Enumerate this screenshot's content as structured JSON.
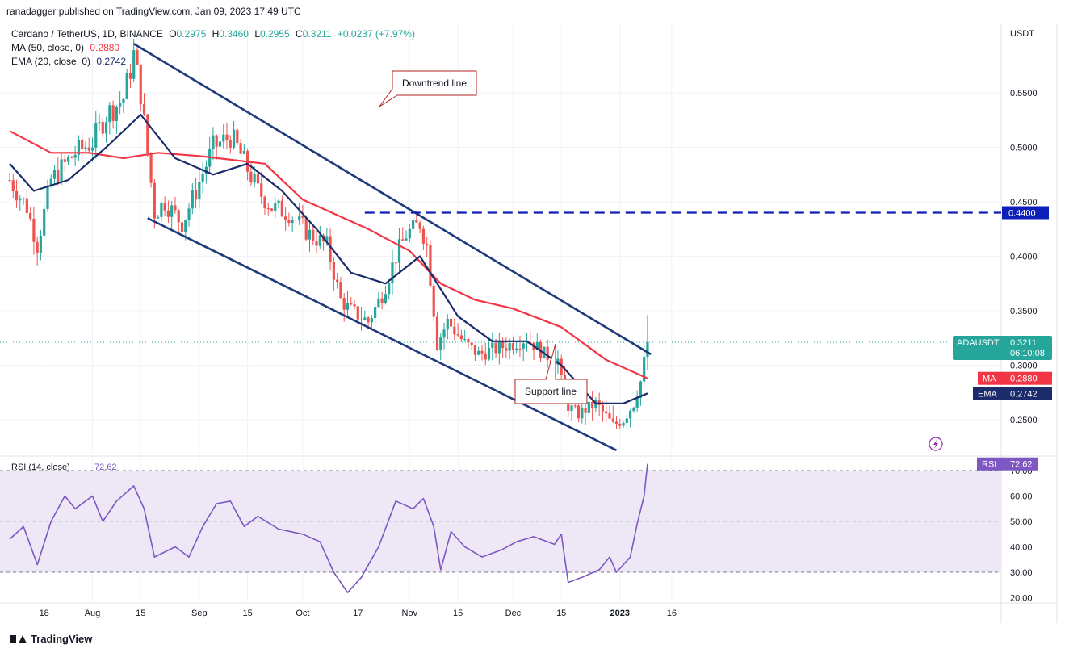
{
  "publisher": "ranadagger published on TradingView.com, Jan 09, 2023 17:49 UTC",
  "header": {
    "symbol": "Cardano / TetherUS, 1D, BINANCE",
    "o_label": "O",
    "o": "0.2975",
    "h_label": "H",
    "h": "0.3460",
    "l_label": "L",
    "l": "0.2955",
    "c_label": "C",
    "c": "0.3211",
    "change": "+0.0237 (+7.97%)",
    "ma_label": "MA (50, close, 0)",
    "ma_value": "0.2880",
    "ema_label": "EMA (20, close, 0)",
    "ema_value": "0.2742"
  },
  "currency": "USDT",
  "footer_brand": "TradingView",
  "colors": {
    "up": "#26a69a",
    "down": "#ef5350",
    "ma": "#f23645",
    "ema": "#1b2b6b",
    "trendline": "#1e3a7b",
    "resistance": "#0d1fb8",
    "rsi": "#7e57c2",
    "rsi_band": "#ede7f6",
    "grid": "#f0f3fa",
    "annotation": "#b22222"
  },
  "chart_data": [
    {
      "type": "candlestick",
      "title": "Cardano / TetherUS, 1D, BINANCE",
      "ylabel": "USDT",
      "ylim": [
        0.22,
        0.6
      ],
      "y_ticks": [
        "0.2500",
        "0.3000",
        "0.3500",
        "0.4000",
        "0.4500",
        "0.5000",
        "0.5500"
      ],
      "x_ticks": [
        "18",
        "Aug",
        "15",
        "Sep",
        "15",
        "Oct",
        "17",
        "Nov",
        "15",
        "Dec",
        "15",
        "2023",
        "16"
      ],
      "series": [
        {
          "name": "ADAUSDT",
          "last": "0.3211",
          "countdown": "06:10:08"
        },
        {
          "name": "MA",
          "last": "0.2880"
        },
        {
          "name": "EMA",
          "last": "0.2742"
        }
      ],
      "close_path": [
        [
          "2022-07-08",
          0.47
        ],
        [
          "2022-07-13",
          0.445
        ],
        [
          "2022-07-16",
          0.41
        ],
        [
          "2022-07-20",
          0.47
        ],
        [
          "2022-07-27",
          0.495
        ],
        [
          "2022-08-01",
          0.505
        ],
        [
          "2022-08-05",
          0.53
        ],
        [
          "2022-08-10",
          0.545
        ],
        [
          "2022-08-13",
          0.585
        ],
        [
          "2022-08-15",
          0.55
        ],
        [
          "2022-08-19",
          0.44
        ],
        [
          "2022-08-22",
          0.45
        ],
        [
          "2022-08-27",
          0.43
        ],
        [
          "2022-08-31",
          0.46
        ],
        [
          "2022-09-05",
          0.5
        ],
        [
          "2022-09-10",
          0.51
        ],
        [
          "2022-09-12",
          0.5
        ],
        [
          "2022-09-18",
          0.46
        ],
        [
          "2022-09-22",
          0.445
        ],
        [
          "2022-09-27",
          0.44
        ],
        [
          "2022-10-03",
          0.42
        ],
        [
          "2022-10-08",
          0.41
        ],
        [
          "2022-10-12",
          0.36
        ],
        [
          "2022-10-15",
          0.35
        ],
        [
          "2022-10-20",
          0.34
        ],
        [
          "2022-10-24",
          0.365
        ],
        [
          "2022-10-28",
          0.4
        ],
        [
          "2022-10-31",
          0.42
        ],
        [
          "2022-11-04",
          0.43
        ],
        [
          "2022-11-06",
          0.41
        ],
        [
          "2022-11-09",
          0.32
        ],
        [
          "2022-11-12",
          0.34
        ],
        [
          "2022-11-17",
          0.32
        ],
        [
          "2022-11-21",
          0.31
        ],
        [
          "2022-11-26",
          0.315
        ],
        [
          "2022-12-01",
          0.32
        ],
        [
          "2022-12-05",
          0.325
        ],
        [
          "2022-12-10",
          0.31
        ],
        [
          "2022-12-14",
          0.305
        ],
        [
          "2022-12-16",
          0.265
        ],
        [
          "2022-12-20",
          0.255
        ],
        [
          "2022-12-25",
          0.265
        ],
        [
          "2022-12-30",
          0.245
        ],
        [
          "2023-01-02",
          0.25
        ],
        [
          "2023-01-05",
          0.265
        ],
        [
          "2023-01-07",
          0.285
        ],
        [
          "2023-01-09",
          0.3211
        ]
      ],
      "ma_path": [
        [
          "2022-07-08",
          0.515
        ],
        [
          "2022-07-20",
          0.495
        ],
        [
          "2022-07-31",
          0.495
        ],
        [
          "2022-08-10",
          0.49
        ],
        [
          "2022-08-20",
          0.495
        ],
        [
          "2022-09-01",
          0.492
        ],
        [
          "2022-09-20",
          0.485
        ],
        [
          "2022-10-01",
          0.452
        ],
        [
          "2022-10-20",
          0.425
        ],
        [
          "2022-11-01",
          0.405
        ],
        [
          "2022-11-10",
          0.375
        ],
        [
          "2022-11-20",
          0.36
        ],
        [
          "2022-12-01",
          0.352
        ],
        [
          "2022-12-15",
          0.335
        ],
        [
          "2022-12-28",
          0.305
        ],
        [
          "2023-01-09",
          0.288
        ]
      ],
      "ema_path": [
        [
          "2022-07-08",
          0.485
        ],
        [
          "2022-07-15",
          0.46
        ],
        [
          "2022-07-25",
          0.47
        ],
        [
          "2022-08-05",
          0.5
        ],
        [
          "2022-08-15",
          0.53
        ],
        [
          "2022-08-25",
          0.49
        ],
        [
          "2022-09-05",
          0.475
        ],
        [
          "2022-09-15",
          0.485
        ],
        [
          "2022-09-25",
          0.46
        ],
        [
          "2022-10-05",
          0.425
        ],
        [
          "2022-10-15",
          0.385
        ],
        [
          "2022-10-25",
          0.375
        ],
        [
          "2022-11-04",
          0.4
        ],
        [
          "2022-11-15",
          0.345
        ],
        [
          "2022-11-25",
          0.322
        ],
        [
          "2022-12-05",
          0.322
        ],
        [
          "2022-12-15",
          0.3
        ],
        [
          "2022-12-25",
          0.265
        ],
        [
          "2023-01-02",
          0.265
        ],
        [
          "2023-01-09",
          0.2742
        ]
      ],
      "trendlines": [
        {
          "label": "Downtrend line",
          "from": [
            "2022-08-13",
            0.595
          ],
          "to": [
            "2023-01-10",
            0.31
          ]
        },
        {
          "label": "Support line",
          "from": [
            "2022-08-17",
            0.435
          ],
          "to": [
            "2022-12-31",
            0.222
          ]
        }
      ],
      "resistance": {
        "value": 0.44,
        "label": "0.4400",
        "from": "2022-10-19"
      },
      "annotations": [
        "Downtrend line",
        "Support line"
      ]
    },
    {
      "type": "line",
      "title": "RSI (14, close)",
      "value_label": "72.62",
      "series_tag": "RSI",
      "ylim": [
        18,
        75
      ],
      "y_ticks": [
        "20.00",
        "30.00",
        "40.00",
        "50.00",
        "60.00",
        "70.00"
      ],
      "band": [
        30,
        70
      ],
      "rsi_path": [
        [
          "2022-07-08",
          43
        ],
        [
          "2022-07-12",
          48
        ],
        [
          "2022-07-16",
          33
        ],
        [
          "2022-07-20",
          50
        ],
        [
          "2022-07-24",
          60
        ],
        [
          "2022-07-27",
          55
        ],
        [
          "2022-08-01",
          60
        ],
        [
          "2022-08-04",
          50
        ],
        [
          "2022-08-08",
          58
        ],
        [
          "2022-08-13",
          64
        ],
        [
          "2022-08-16",
          55
        ],
        [
          "2022-08-19",
          36
        ],
        [
          "2022-08-25",
          40
        ],
        [
          "2022-08-29",
          36
        ],
        [
          "2022-09-02",
          48
        ],
        [
          "2022-09-06",
          57
        ],
        [
          "2022-09-10",
          58
        ],
        [
          "2022-09-14",
          48
        ],
        [
          "2022-09-18",
          52
        ],
        [
          "2022-09-24",
          47
        ],
        [
          "2022-10-01",
          45
        ],
        [
          "2022-10-06",
          42
        ],
        [
          "2022-10-10",
          30
        ],
        [
          "2022-10-14",
          22
        ],
        [
          "2022-10-18",
          28
        ],
        [
          "2022-10-23",
          40
        ],
        [
          "2022-10-28",
          58
        ],
        [
          "2022-11-02",
          55
        ],
        [
          "2022-11-05",
          59
        ],
        [
          "2022-11-08",
          48
        ],
        [
          "2022-11-10",
          31
        ],
        [
          "2022-11-13",
          46
        ],
        [
          "2022-11-17",
          40
        ],
        [
          "2022-11-22",
          36
        ],
        [
          "2022-11-28",
          39
        ],
        [
          "2022-12-02",
          42
        ],
        [
          "2022-12-07",
          44
        ],
        [
          "2022-12-13",
          41
        ],
        [
          "2022-12-15",
          45
        ],
        [
          "2022-12-17",
          26
        ],
        [
          "2022-12-21",
          28
        ],
        [
          "2022-12-26",
          31
        ],
        [
          "2022-12-29",
          36
        ],
        [
          "2022-12-31",
          30
        ],
        [
          "2023-01-04",
          36
        ],
        [
          "2023-01-06",
          49
        ],
        [
          "2023-01-08",
          60
        ],
        [
          "2023-01-09",
          72.62
        ]
      ]
    }
  ]
}
